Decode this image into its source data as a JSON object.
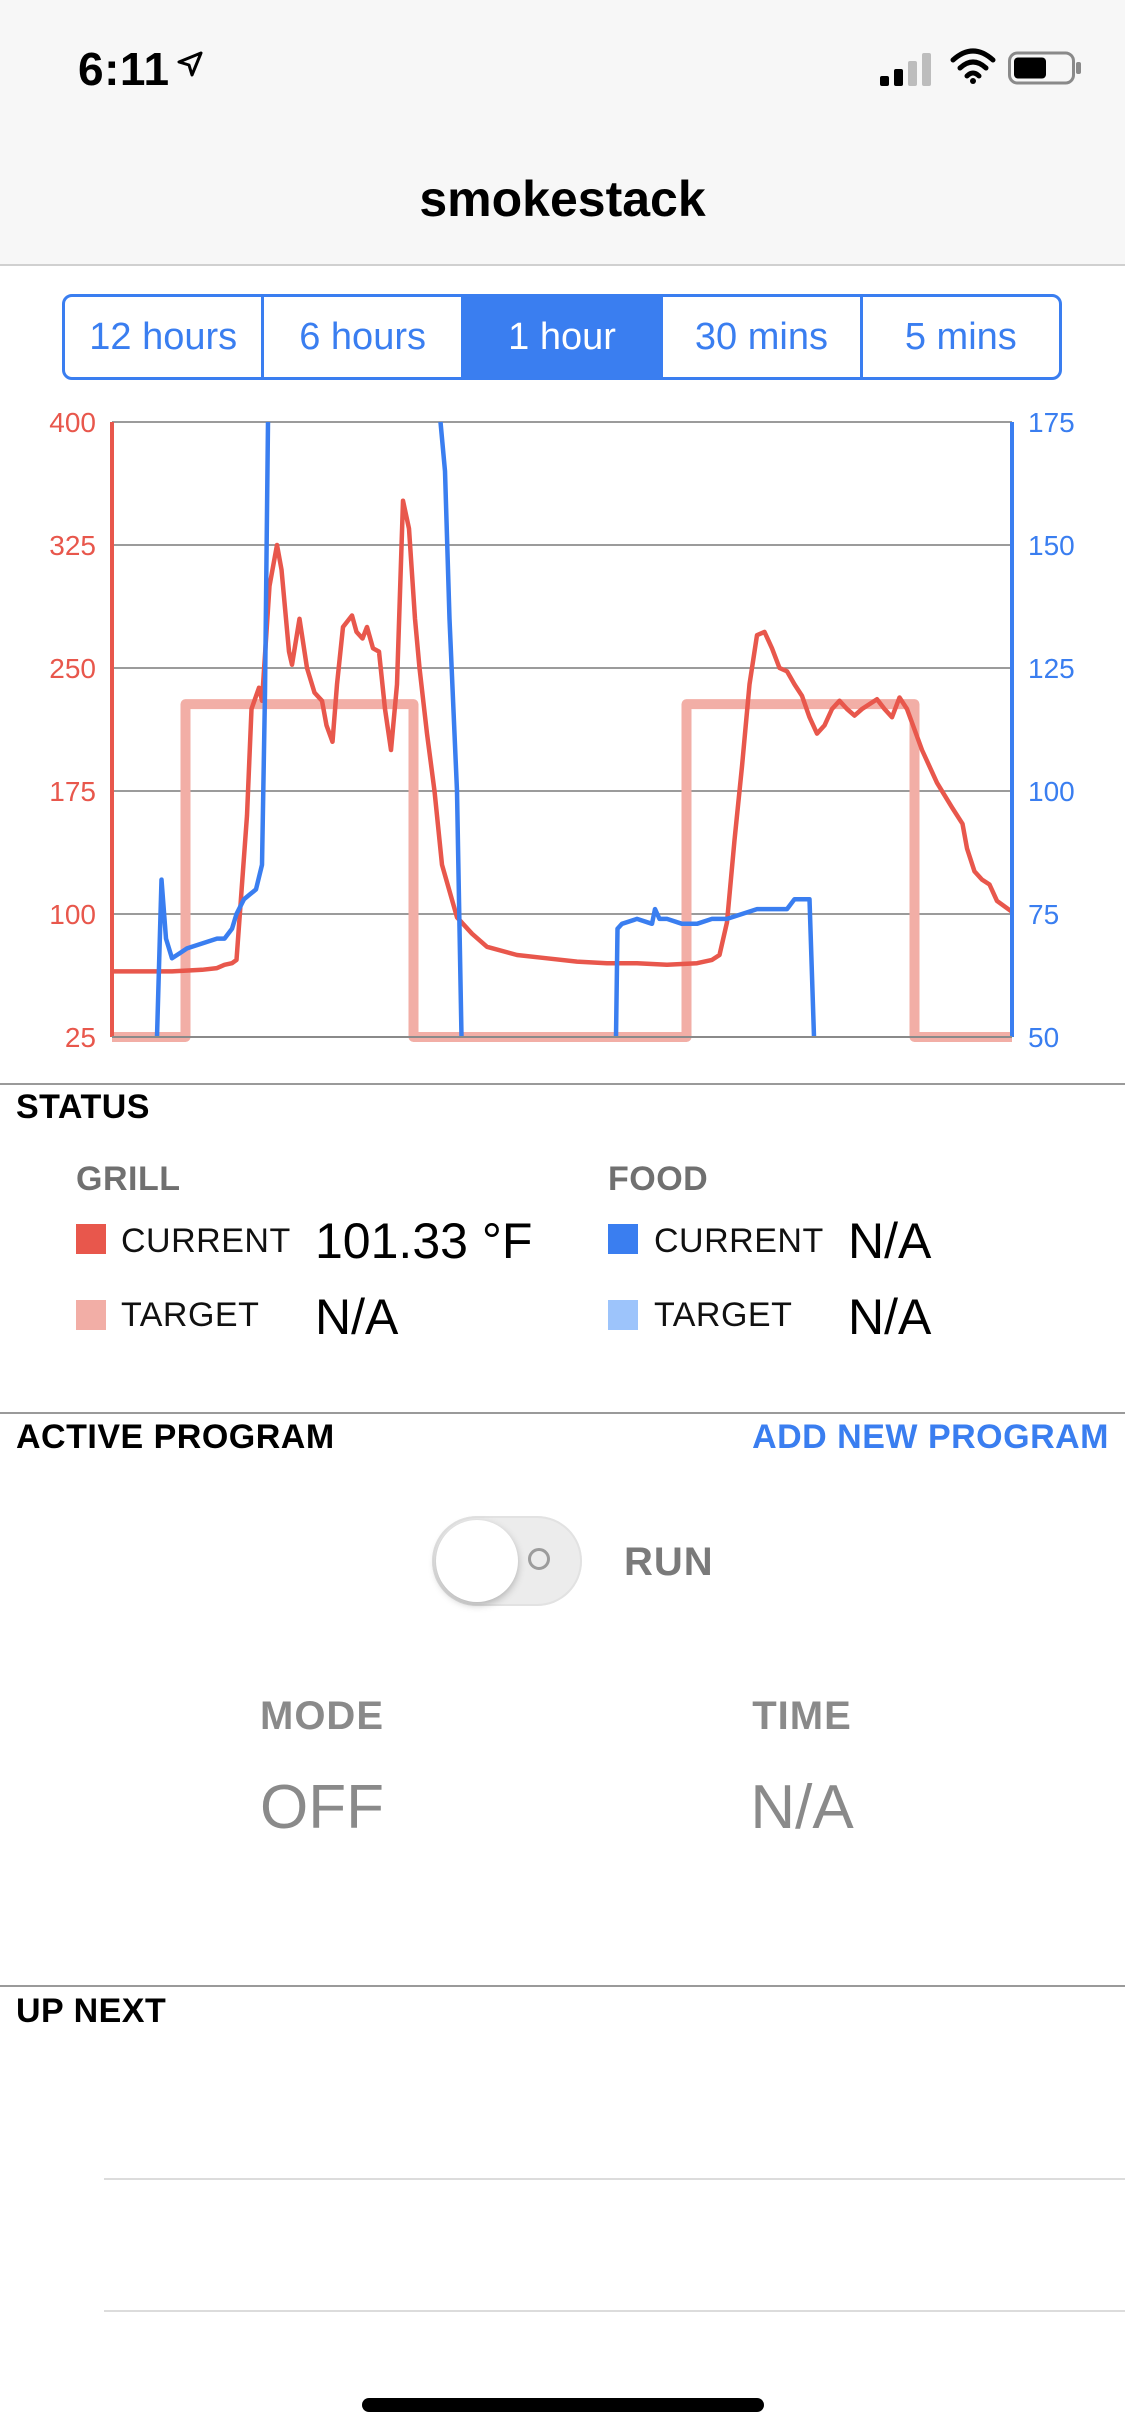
{
  "status_bar": {
    "time": "6:11",
    "icons": [
      "location-arrow-icon",
      "cellular-signal-icon",
      "wifi-icon",
      "battery-icon"
    ]
  },
  "nav": {
    "title": "smokestack"
  },
  "range_tabs": {
    "items": [
      "12 hours",
      "6 hours",
      "1 hour",
      "30 mins",
      "5 mins"
    ],
    "selected": "1 hour"
  },
  "chart_data": {
    "type": "line",
    "left_axis": {
      "ticks": [
        "400",
        "325",
        "250",
        "175",
        "100",
        "25"
      ],
      "range": [
        25,
        400
      ],
      "color": "#e8574c"
    },
    "right_axis": {
      "ticks": [
        "175",
        "150",
        "125",
        "100",
        "75",
        "50"
      ],
      "range": [
        50,
        175
      ],
      "color": "#3a7ef0"
    },
    "grid": true,
    "x_range": [
      0,
      60
    ],
    "series": [
      {
        "axis": "left",
        "color": "#e8574c",
        "x": [
          0,
          2,
          4,
          6,
          7,
          7.5,
          8,
          8.3,
          9,
          9.3,
          9.8,
          10,
          10.5,
          11,
          11.3,
          11.8,
          12,
          12.5,
          13,
          13.5,
          14,
          14.3,
          14.7,
          15,
          15.4,
          16,
          16.3,
          16.7,
          17,
          17.4,
          17.8,
          18.2,
          18.6,
          19,
          19.4,
          19.8,
          20.2,
          20.5,
          21,
          21.5,
          22,
          23,
          24,
          25,
          27,
          29,
          31,
          33,
          35,
          37,
          39,
          40,
          40.5,
          41,
          41.5,
          42,
          42.5,
          43,
          43.5,
          44,
          44.5,
          45,
          45.5,
          46,
          46.5,
          47,
          47.5,
          48,
          48.5,
          49,
          49.5,
          50,
          50.5,
          51,
          51.5,
          52,
          52.5,
          53,
          54,
          55,
          56,
          56.7,
          57,
          57.5,
          58,
          58.5,
          59,
          60
        ],
        "y": [
          65,
          65,
          65,
          66,
          67,
          69,
          70,
          72,
          160,
          225,
          238,
          230,
          300,
          325,
          310,
          260,
          252,
          280,
          250,
          235,
          230,
          215,
          205,
          240,
          275,
          282,
          272,
          268,
          275,
          262,
          260,
          225,
          200,
          240,
          352,
          335,
          280,
          250,
          210,
          175,
          130,
          98,
          88,
          80,
          75,
          73,
          71,
          70,
          70,
          69,
          70,
          72,
          75,
          95,
          145,
          190,
          240,
          270,
          272,
          262,
          250,
          248,
          240,
          233,
          220,
          210,
          215,
          225,
          230,
          225,
          221,
          225,
          228,
          231,
          225,
          220,
          232,
          225,
          200,
          180,
          165,
          155,
          140,
          126,
          121,
          118,
          108,
          101.33
        ]
      },
      {
        "axis": "left",
        "color": "#f2aea6",
        "x": [
          0,
          4.9,
          4.9,
          20.1,
          20.1,
          38.3,
          38.3,
          53.5,
          53.5,
          60
        ],
        "y": [
          25,
          25,
          228,
          228,
          25,
          25,
          228,
          228,
          25,
          25
        ]
      },
      {
        "axis": "right",
        "color": "#3a7ef0",
        "segments": [
          {
            "x": [
              3,
              3.3,
              3.6,
              4,
              4.5,
              5,
              6,
              7,
              7.5,
              8,
              8.3,
              8.8,
              9.2,
              9.6,
              10,
              10.2,
              10.4
            ],
            "y": [
              50,
              82,
              70,
              66,
              67,
              68,
              69,
              70,
              70,
              72,
              75,
              78,
              79,
              80,
              85,
              120,
              175
            ]
          },
          {
            "x": [
              21.9,
              22.2,
              22.5,
              23,
              23.3
            ],
            "y": [
              175,
              165,
              135,
              100,
              50
            ]
          },
          {
            "x": [
              33.6,
              33.7,
              34,
              35,
              36,
              36.2,
              36.5,
              37,
              38,
              39,
              40,
              41,
              42,
              43,
              44,
              45,
              45.5,
              46,
              46.5,
              46.8
            ],
            "y": [
              50,
              72,
              73,
              74,
              73,
              76,
              74,
              74,
              73,
              73,
              74,
              74,
              75,
              76,
              76,
              76,
              78,
              78,
              78,
              50
            ]
          }
        ]
      }
    ]
  },
  "status": {
    "title": "STATUS",
    "grill": {
      "title": "GRILL",
      "current_label": "CURRENT",
      "current_value": "101.33 °F",
      "current_color": "#e8574c",
      "target_label": "TARGET",
      "target_value": "N/A",
      "target_color": "#f2aea6"
    },
    "food": {
      "title": "FOOD",
      "current_label": "CURRENT",
      "current_value": "N/A",
      "current_color": "#3a7ef0",
      "target_label": "TARGET",
      "target_value": "N/A",
      "target_color": "#9dc4fb"
    }
  },
  "active_program": {
    "title": "ACTIVE PROGRAM",
    "add_link": "ADD NEW PROGRAM",
    "run_label": "RUN",
    "run_on": false,
    "mode_label": "MODE",
    "mode_value": "OFF",
    "time_label": "TIME",
    "time_value": "N/A"
  },
  "up_next": {
    "title": "UP NEXT"
  }
}
